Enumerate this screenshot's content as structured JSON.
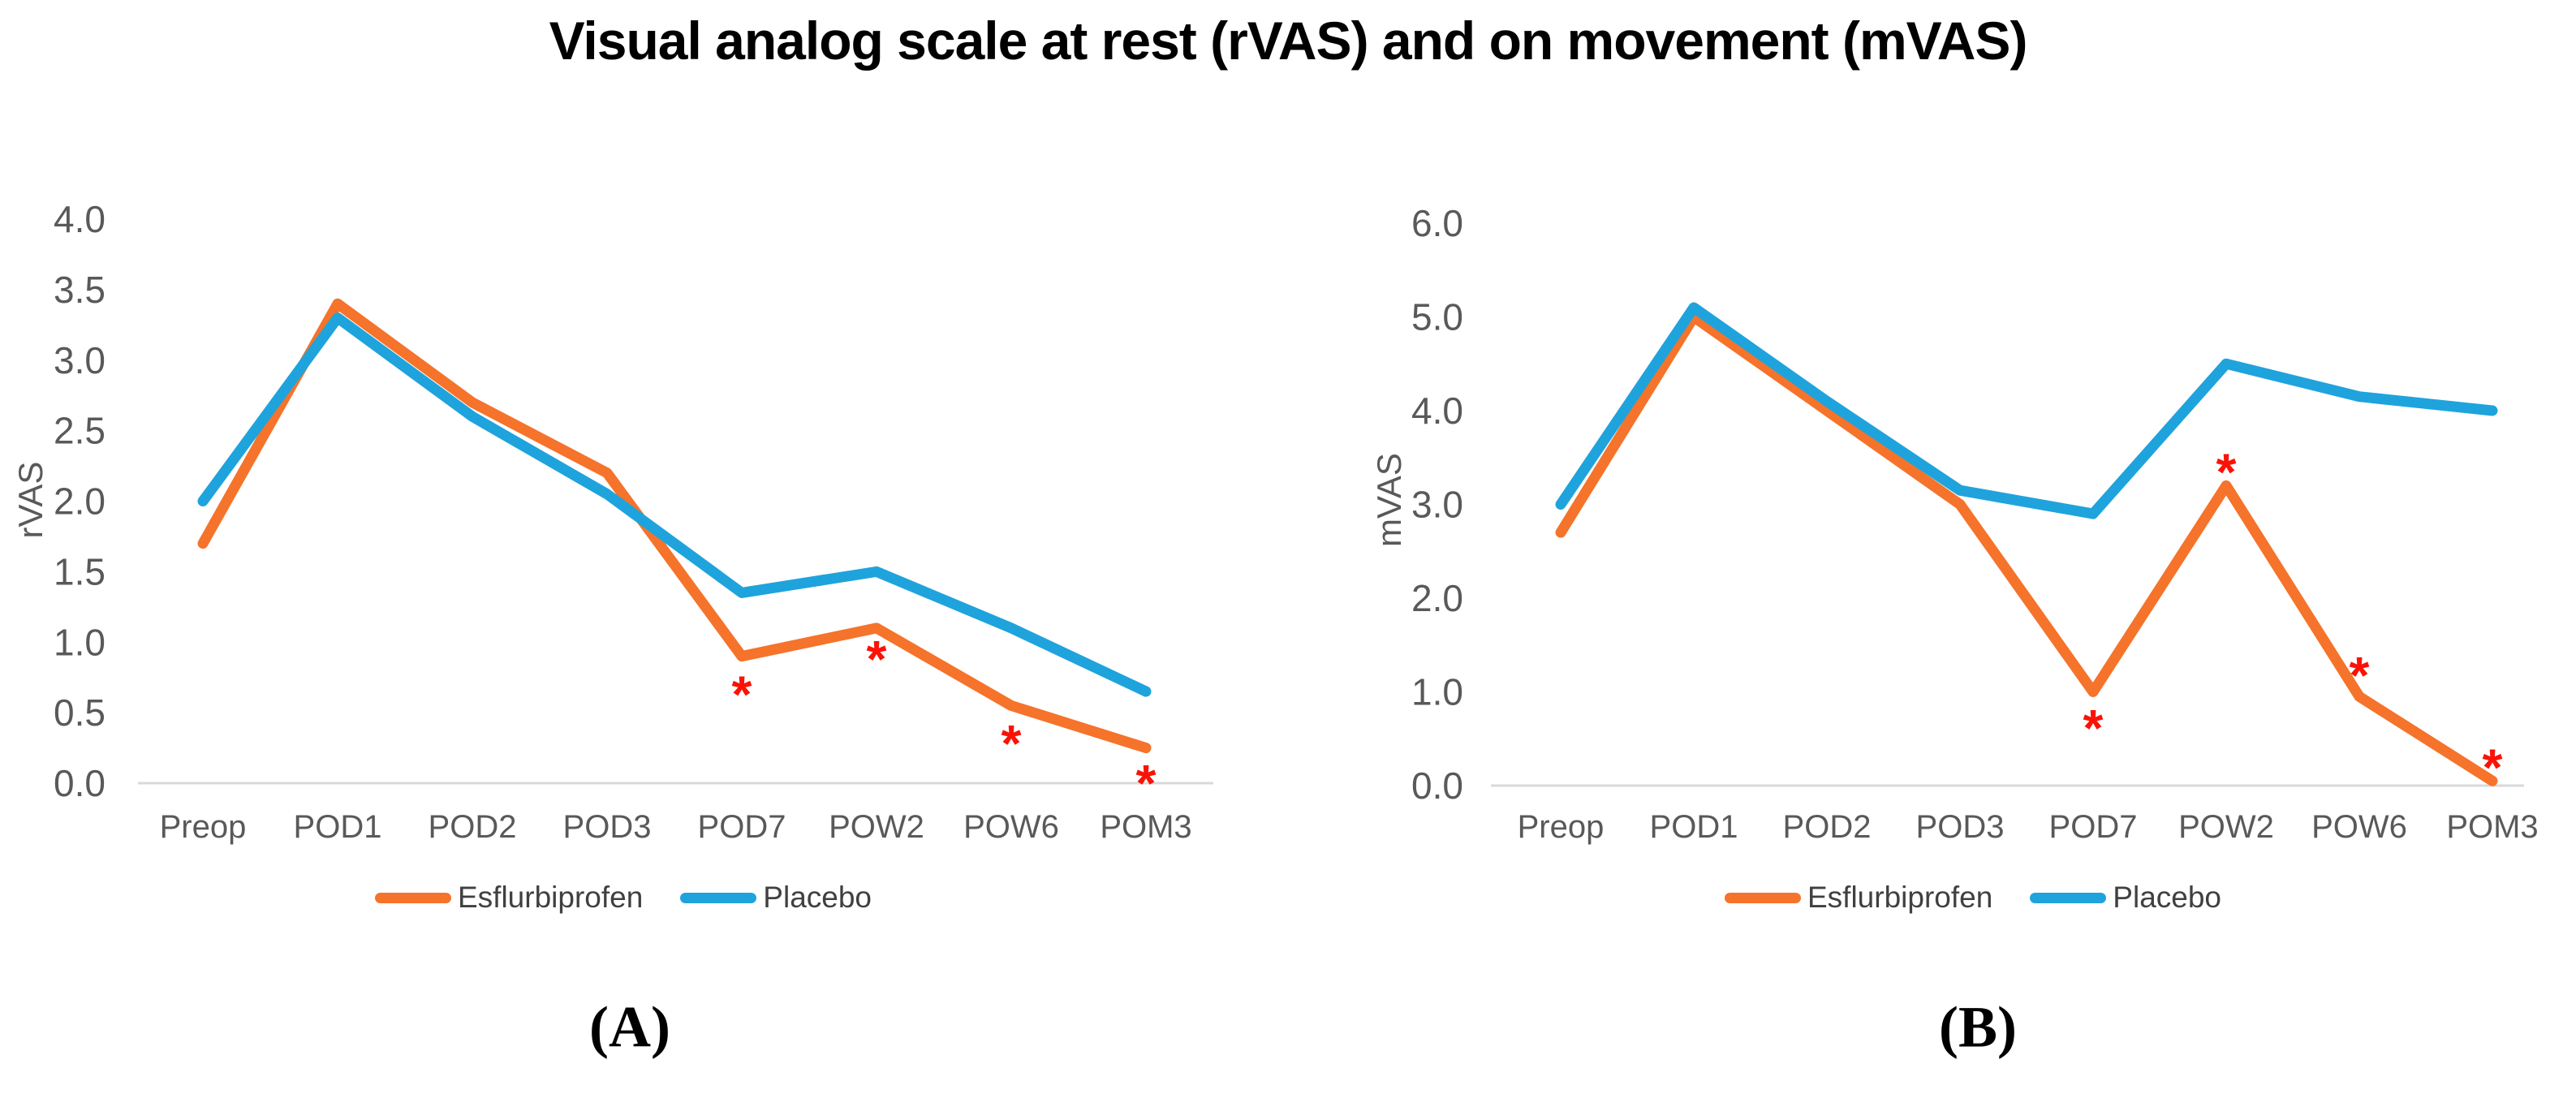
{
  "title": "Visual analog scale at rest (rVAS) and on movement (mVAS)",
  "colors": {
    "esflurbiprofen": "#F5732A",
    "placebo": "#1FA3DC",
    "significance": "#FB1207",
    "axis_line": "#D9D9D9",
    "tick_text": "#595959",
    "legend_text": "#404040"
  },
  "chart_data": [
    {
      "type": "line",
      "panel": "A",
      "caption": "(A)",
      "ylabel": "rVAS",
      "xlabel": "",
      "ylim": [
        0,
        4
      ],
      "ytick_step": 0.5,
      "grid": false,
      "legend_position": "bottom",
      "categories": [
        "Preop",
        "POD1",
        "POD2",
        "POD3",
        "POD7",
        "POW2",
        "POW6",
        "POM3"
      ],
      "series": [
        {
          "name": "Esflurbiprofen",
          "color": "#F5732A",
          "values": [
            1.7,
            3.4,
            2.7,
            2.2,
            0.9,
            1.1,
            0.55,
            0.25
          ]
        },
        {
          "name": "Placebo",
          "color": "#1FA3DC",
          "values": [
            2.0,
            3.3,
            2.6,
            2.05,
            1.35,
            1.5,
            1.1,
            0.65
          ]
        }
      ],
      "significance_markers": {
        "symbol": "*",
        "color": "#FB1207",
        "points": [
          {
            "category": "POD7",
            "y": 0.7
          },
          {
            "category": "POW2",
            "y": 0.95
          },
          {
            "category": "POW6",
            "y": 0.35
          },
          {
            "category": "POM3",
            "y": 0.07
          }
        ]
      }
    },
    {
      "type": "line",
      "panel": "B",
      "caption": "(B)",
      "ylabel": "mVAS",
      "xlabel": "",
      "ylim": [
        0,
        6
      ],
      "ytick_step": 1.0,
      "grid": false,
      "legend_position": "bottom",
      "categories": [
        "Preop",
        "POD1",
        "POD2",
        "POD3",
        "POD7",
        "POW2",
        "POW6",
        "POM3"
      ],
      "series": [
        {
          "name": "Esflurbiprofen",
          "color": "#F5732A",
          "values": [
            2.7,
            5.0,
            4.0,
            3.0,
            1.0,
            3.2,
            0.95,
            0.05
          ]
        },
        {
          "name": "Placebo",
          "color": "#1FA3DC",
          "values": [
            3.0,
            5.1,
            4.1,
            3.15,
            2.9,
            4.5,
            4.15,
            4.0
          ]
        }
      ],
      "significance_markers": {
        "symbol": "*",
        "color": "#FB1207",
        "points": [
          {
            "category": "POD7",
            "y": 0.72
          },
          {
            "category": "POW2",
            "y": 3.45
          },
          {
            "category": "POW6",
            "y": 1.28
          },
          {
            "category": "POM3",
            "y": 0.3
          }
        ]
      }
    }
  ]
}
